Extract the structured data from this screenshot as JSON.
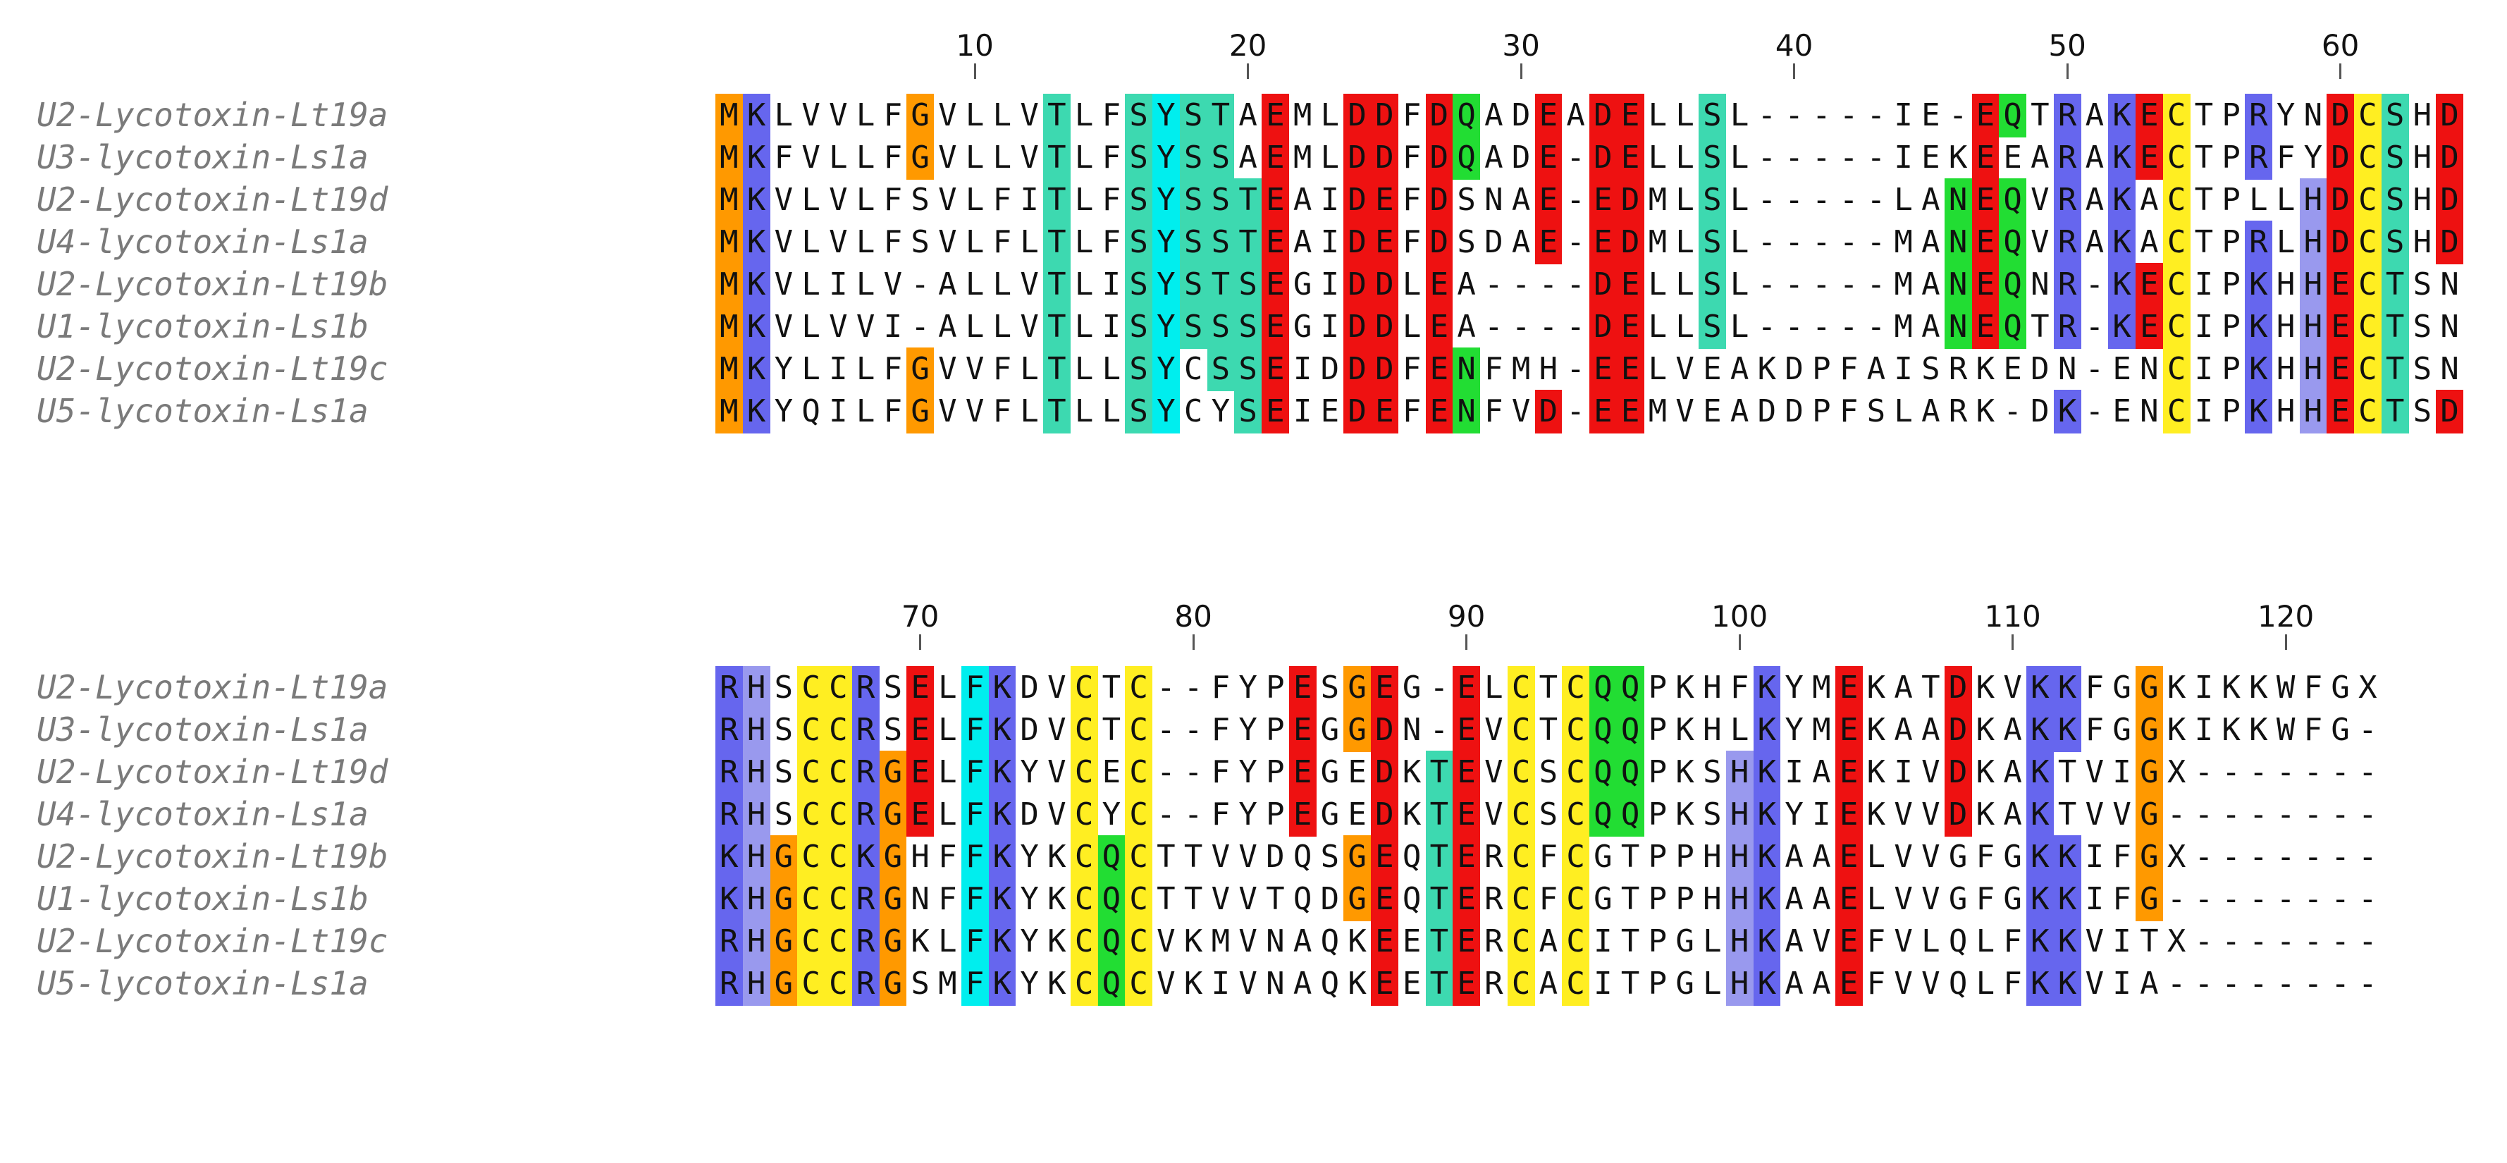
{
  "colors": {
    "acidic": "#ee1111",
    "basic": "#6666ee",
    "basic_light": "#9999ee",
    "hydroxyl": "#3dd9b0",
    "amide": "#22dd33",
    "cysteine": "#ffee22",
    "glycine": "#ff9900",
    "aromatic": "#00eeee"
  },
  "blocks": [
    {
      "ticks": [
        {
          "label": "10",
          "pos": 10
        },
        {
          "label": "20",
          "pos": 20
        },
        {
          "label": "30",
          "pos": 30
        },
        {
          "label": "40",
          "pos": 40
        },
        {
          "label": "50",
          "pos": 50
        },
        {
          "label": "60",
          "pos": 60
        }
      ],
      "sequences": [
        {
          "name": "U2-Lycotoxin-Lt19a",
          "seq": "MKLVVLFGVLLVTLFSYSTAEMLDDFDQADEADELLSL-----IE-EQTRAKECTPRYNDCSHD"
        },
        {
          "name": "U3-lycotoxin-Ls1a",
          "seq": "MKFVLLFGVLLVTLFSYSSAEMLDDFDQADE-DELLSL-----IEKEEARAKECTPRFYDCSHD"
        },
        {
          "name": "U2-Lycotoxin-Lt19d",
          "seq": "MKVLVLFSVLFITLFSYSSTEAIDEFDSNAE-EDMLSL-----LANEQVRAKACTPLLHDCSHD"
        },
        {
          "name": "U4-lycotoxin-Ls1a",
          "seq": "MKVLVLFSVLFLTLFSYSSTEAIDEFDSDAE-EDMLSL-----MANEQVRAKACTPRLHDCSHD"
        },
        {
          "name": "U2-Lycotoxin-Lt19b",
          "seq": "MKVLILV-ALLVTLISYSTSEGIDDLEA----DELLSL-----MANEQNR-KECIPKHHECTSN"
        },
        {
          "name": "U1-lycotoxin-Ls1b",
          "seq": "MKVLVVI-ALLVTLISYSSSEGIDDLEA----DELLSL-----MANEQTR-KECIPKHHECTSN"
        },
        {
          "name": "U2-Lycotoxin-Lt19c",
          "seq": "MKYLILFGVVFLTLLSYCSSEIDDDFENFMH-EELVEAKDPFAISRKEDN-ENCIPKHHECTSN"
        },
        {
          "name": "U5-lycotoxin-Ls1a",
          "seq": "MKYQILFGVVFLTLLSYCYSEIEDEFENFVD-EEMVEADDPFSLARK-DK-ENCIPKHHECTSD"
        }
      ]
    },
    {
      "ticks": [
        {
          "label": "70",
          "pos": 70
        },
        {
          "label": "80",
          "pos": 80
        },
        {
          "label": "90",
          "pos": 90
        },
        {
          "label": "100",
          "pos": 100
        },
        {
          "label": "110",
          "pos": 110
        },
        {
          "label": "120",
          "pos": 120
        }
      ],
      "sequences": [
        {
          "name": "U2-Lycotoxin-Lt19a",
          "seq": "RHSCCRSELFKDVCTC--FYPESGEG-ELCTCQQPKHFKYMEKATDKVKKFGGKIKKWFGX"
        },
        {
          "name": "U3-lycotoxin-Ls1a",
          "seq": "RHSCCRSELFKDVCTC--FYPEGGDN-EVCTCQQPKHLKYMEKAADKAKKFGGKIKKWFG-"
        },
        {
          "name": "U2-Lycotoxin-Lt19d",
          "seq": "RHSCCRGELFKYVCEC--FYPEGEDKTEVCSCQQPKSHKIAEKIVDKAKTVIGX-------"
        },
        {
          "name": "U4-lycotoxin-Ls1a",
          "seq": "RHSCCRGELFKDVCYC--FYPEGEDKTEVCSCQQPKSHKYIEKVVDKAKTVVG--------"
        },
        {
          "name": "U2-Lycotoxin-Lt19b",
          "seq": "KHGCCKGHFFKYKCQCTTVVDQSGEQTERCFCGTPPHHKAAELVVGFGKKIFGX-------"
        },
        {
          "name": "U1-lycotoxin-Ls1b",
          "seq": "KHGCCRGNFFKYKCQCTTVVTQDGEQTERCFCGTPPHHKAAELVVGFGKKIFG--------"
        },
        {
          "name": "U2-Lycotoxin-Lt19c",
          "seq": "RHGCCRGKLFKYKCQCVKMVNAQKEETERCACITPGLHKAVEFVLQLFKKVITX-------"
        },
        {
          "name": "U5-lycotoxin-Ls1a",
          "seq": "RHGCCRGSMFKYKCQCVKIVNAQKEETERCACITPGLHKAAEFVVQLFKKVIA--------"
        }
      ]
    }
  ]
}
